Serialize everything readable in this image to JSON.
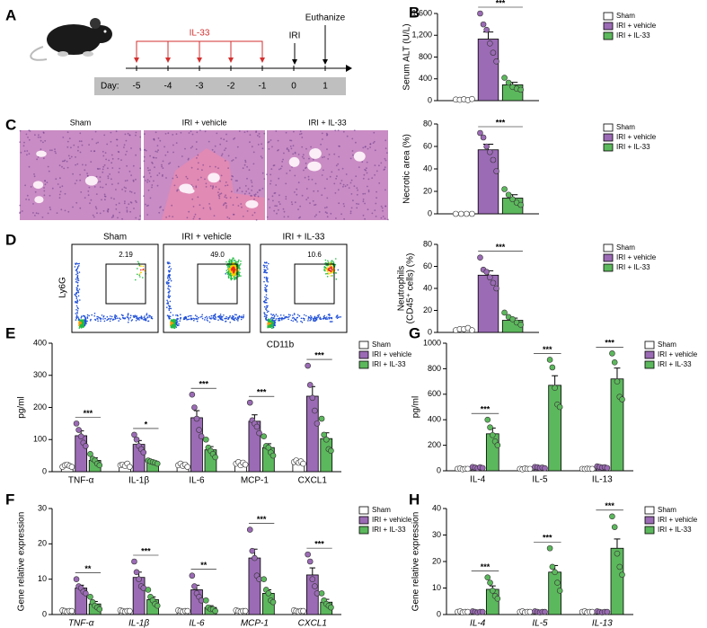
{
  "panel_labels": [
    "A",
    "B",
    "C",
    "D",
    "E",
    "F",
    "G",
    "H"
  ],
  "panel_a": {
    "treatment": "IL-33",
    "injury": "IRI",
    "endpoint": "Euthanize",
    "day_label": "Day:",
    "days": [
      "-5",
      "-4",
      "-3",
      "-2",
      "-1",
      "0",
      "1"
    ]
  },
  "panel_c": {
    "groups": [
      "Sham",
      "IRI + vehicle",
      "IRI + IL-33"
    ]
  },
  "panel_d": {
    "groups": [
      "Sham",
      "IRI + vehicle",
      "IRI + IL-33"
    ],
    "gate_percent": [
      "2.19",
      "49.0",
      "10.6"
    ],
    "y_axis": "Ly6G",
    "x_axis": "CD11b"
  },
  "chart_data": [
    {
      "type": "bar",
      "ylabel": "Serum ALT (U/L)",
      "categories": [
        null
      ],
      "significance": [
        "***"
      ],
      "ylim": [
        0,
        1600
      ],
      "yticks": [
        0,
        400,
        800,
        {
          "value": 1200,
          "label": "1,200"
        },
        {
          "value": 1600,
          "label": "1,600"
        }
      ],
      "series": [
        {
          "name": "Sham",
          "color": "#ffffff",
          "values": [
            20
          ],
          "errors": [
            5
          ],
          "points": [
            [
              20,
              15,
              25,
              10,
              30
            ]
          ]
        },
        {
          "name": "IRI + vehicle",
          "color": "#9b6bb5",
          "values": [
            1130
          ],
          "errors": [
            130
          ],
          "points": [
            [
              1600,
              1400,
              1300,
              1050,
              880,
              720
            ]
          ]
        },
        {
          "name": "IRI + IL-33",
          "color": "#5cb85c",
          "values": [
            290
          ],
          "errors": [
            45
          ],
          "points": [
            [
              420,
              330,
              250,
              220,
              200
            ]
          ]
        }
      ]
    },
    {
      "type": "bar",
      "ylabel": "Necrotic area (%)",
      "categories": [
        null
      ],
      "significance": [
        "***"
      ],
      "ylim": [
        0,
        80
      ],
      "yticks": [
        0,
        20,
        40,
        60,
        80
      ],
      "series": [
        {
          "name": "Sham",
          "color": "#ffffff",
          "values": [
            0
          ],
          "errors": [
            0
          ],
          "points": [
            [
              0,
              0,
              0,
              0
            ]
          ]
        },
        {
          "name": "IRI + vehicle",
          "color": "#9b6bb5",
          "values": [
            57
          ],
          "errors": [
            5
          ],
          "points": [
            [
              72,
              68,
              60,
              55,
              48,
              38
            ]
          ]
        },
        {
          "name": "IRI + IL-33",
          "color": "#5cb85c",
          "values": [
            14
          ],
          "errors": [
            3
          ],
          "points": [
            [
              22,
              17,
              13,
              10,
              8
            ]
          ]
        }
      ]
    },
    {
      "type": "bar",
      "ylabel": [
        "Neutrophils",
        "(CD45⁺ cells) (%)"
      ],
      "categories": [
        null
      ],
      "significance": [
        "***"
      ],
      "ylim": [
        0,
        80
      ],
      "yticks": [
        0,
        20,
        40,
        60,
        80
      ],
      "series": [
        {
          "name": "Sham",
          "color": "#ffffff",
          "values": [
            3
          ],
          "errors": [
            0.5
          ],
          "points": [
            [
              2,
              3,
              3,
              4,
              2
            ]
          ]
        },
        {
          "name": "IRI + vehicle",
          "color": "#9b6bb5",
          "values": [
            52
          ],
          "errors": [
            4
          ],
          "points": [
            [
              68,
              57,
              55,
              50,
              45,
              40
            ]
          ]
        },
        {
          "name": "IRI + IL-33",
          "color": "#5cb85c",
          "values": [
            11
          ],
          "errors": [
            2
          ],
          "points": [
            [
              18,
              14,
              12,
              9,
              7
            ]
          ]
        }
      ]
    },
    {
      "type": "bar",
      "ylabel": "pg/ml",
      "categories": [
        "TNF-α",
        "IL-1β",
        "IL-6",
        "MCP-1",
        "CXCL1"
      ],
      "significance": [
        "***",
        "*",
        "***",
        "***",
        "***"
      ],
      "ylim": [
        0,
        400
      ],
      "yticks": [
        0,
        100,
        200,
        300,
        400
      ],
      "series": [
        {
          "name": "Sham",
          "color": "#ffffff",
          "values": [
            18,
            20,
            20,
            25,
            30
          ],
          "errors": [
            3,
            3,
            3,
            3,
            3
          ],
          "points": [
            [
              15,
              20,
              22,
              18,
              15
            ],
            [
              20,
              22,
              18,
              25,
              15
            ],
            [
              20,
              25,
              18,
              22,
              15
            ],
            [
              25,
              30,
              20,
              28,
              22
            ],
            [
              30,
              35,
              28,
              32,
              25
            ]
          ]
        },
        {
          "name": "IRI + vehicle",
          "color": "#9b6bb5",
          "values": [
            112,
            85,
            168,
            157,
            235
          ],
          "errors": [
            15,
            12,
            22,
            20,
            30
          ],
          "points": [
            [
              150,
              130,
              110,
              90,
              80
            ],
            [
              115,
              100,
              80,
              70,
              60
            ],
            [
              240,
              200,
              165,
              130,
              110
            ],
            [
              215,
              160,
              150,
              140,
              120
            ],
            [
              330,
              270,
              230,
              190,
              150
            ]
          ]
        },
        {
          "name": "IRI + IL-33",
          "color": "#5cb85c",
          "values": [
            35,
            30,
            68,
            75,
            103
          ],
          "errors": [
            8,
            3,
            10,
            12,
            18
          ],
          "points": [
            [
              55,
              40,
              35,
              25,
              20
            ],
            [
              35,
              32,
              30,
              28,
              25
            ],
            [
              100,
              75,
              65,
              55,
              45
            ],
            [
              110,
              80,
              75,
              60,
              50
            ],
            [
              165,
              115,
              100,
              70,
              65
            ]
          ]
        }
      ]
    },
    {
      "type": "bar",
      "ylabel": "pg/ml",
      "categories": [
        "IL-4",
        "IL-5",
        "IL-13"
      ],
      "significance": [
        "***",
        "***",
        "***"
      ],
      "ylim": [
        0,
        1000
      ],
      "yticks": [
        0,
        200,
        400,
        600,
        800,
        1000
      ],
      "series": [
        {
          "name": "Sham",
          "color": "#ffffff",
          "values": [
            15,
            15,
            15
          ],
          "errors": [
            3,
            3,
            3
          ],
          "points": [
            [
              15,
              18,
              12,
              15,
              15
            ],
            [
              15,
              12,
              18,
              15,
              15
            ],
            [
              15,
              14,
              16,
              15,
              15
            ]
          ]
        },
        {
          "name": "IRI + vehicle",
          "color": "#9b6bb5",
          "values": [
            25,
            25,
            28
          ],
          "errors": [
            4,
            4,
            5
          ],
          "points": [
            [
              30,
              25,
              20,
              28,
              22
            ],
            [
              30,
              28,
              22,
              25,
              20
            ],
            [
              35,
              30,
              25,
              28,
              22
            ]
          ]
        },
        {
          "name": "IRI + IL-33",
          "color": "#5cb85c",
          "values": [
            290,
            670,
            720
          ],
          "errors": [
            45,
            75,
            85
          ],
          "points": [
            [
              400,
              340,
              280,
              230,
              200
            ],
            [
              870,
              810,
              650,
              520,
              500
            ],
            [
              920,
              850,
              700,
              580,
              560
            ]
          ]
        }
      ]
    },
    {
      "type": "bar",
      "ylabel": "Gene relative expression",
      "italic_categories": true,
      "categories": [
        "TNF-α",
        "IL-1β",
        "IL-6",
        "MCP-1",
        "CXCL1"
      ],
      "significance": [
        "**",
        "***",
        "**",
        "***",
        "***"
      ],
      "ylim": [
        0,
        30
      ],
      "yticks": [
        0,
        10,
        20,
        30
      ],
      "series": [
        {
          "name": "Sham",
          "color": "#ffffff",
          "values": [
            1,
            1,
            1,
            1,
            1
          ],
          "errors": [
            0.1,
            0.1,
            0.1,
            0.1,
            0.1
          ],
          "points": [
            [
              1.2,
              1,
              0.8,
              1,
              1
            ],
            [
              1.2,
              1,
              0.8,
              1,
              1
            ],
            [
              1.2,
              1,
              0.8,
              1,
              1
            ],
            [
              1.2,
              1,
              0.8,
              1,
              1
            ],
            [
              1.2,
              1,
              0.8,
              1,
              1
            ]
          ]
        },
        {
          "name": "IRI + vehicle",
          "color": "#9b6bb5",
          "values": [
            7.5,
            10.5,
            7,
            16,
            11.2
          ],
          "errors": [
            0.8,
            1.5,
            1.3,
            2.5,
            2
          ],
          "points": [
            [
              10,
              8,
              7.5,
              6.5,
              6
            ],
            [
              15,
              12,
              10,
              8,
              7.5
            ],
            [
              11,
              8,
              6,
              5,
              4
            ],
            [
              24,
              18,
              16,
              11,
              10
            ],
            [
              17,
              15,
              10,
              8,
              6
            ]
          ]
        },
        {
          "name": "IRI + IL-33",
          "color": "#5cb85c",
          "values": [
            3,
            4.2,
            2,
            6,
            3.5
          ],
          "errors": [
            0.7,
            0.8,
            0.5,
            1,
            0.8
          ],
          "points": [
            [
              5,
              3.5,
              2.5,
              2,
              1.5
            ],
            [
              7,
              5,
              4,
              3,
              2.5
            ],
            [
              4,
              2,
              1.5,
              1.5,
              1
            ],
            [
              10,
              7,
              6,
              4,
              3.5
            ],
            [
              6,
              4,
              3,
              2.5,
              2
            ]
          ]
        }
      ]
    },
    {
      "type": "bar",
      "ylabel": "Gene relative expression",
      "italic_categories": true,
      "categories": [
        "IL-4",
        "IL-5",
        "IL-13"
      ],
      "significance": [
        "***",
        "***",
        "***"
      ],
      "ylim": [
        0,
        40
      ],
      "yticks": [
        0,
        10,
        20,
        30,
        40
      ],
      "series": [
        {
          "name": "Sham",
          "color": "#ffffff",
          "values": [
            1,
            1,
            1
          ],
          "errors": [
            0.1,
            0.1,
            0.1
          ],
          "points": [
            [
              1,
              1.2,
              0.8,
              1,
              1
            ],
            [
              1,
              1.2,
              0.8,
              1,
              1
            ],
            [
              1,
              1.2,
              0.8,
              1,
              1
            ]
          ]
        },
        {
          "name": "IRI + vehicle",
          "color": "#9b6bb5",
          "values": [
            1,
            1,
            1
          ],
          "errors": [
            0.1,
            0.1,
            0.1
          ],
          "points": [
            [
              1.2,
              1,
              0.8,
              1,
              1
            ],
            [
              1.2,
              1,
              0.8,
              1,
              1
            ],
            [
              1.2,
              1,
              0.8,
              1,
              1
            ]
          ]
        },
        {
          "name": "IRI + IL-33",
          "color": "#5cb85c",
          "values": [
            9.5,
            16,
            25
          ],
          "errors": [
            1.3,
            2.5,
            3.5
          ],
          "points": [
            [
              14,
              12,
              9,
              7,
              6
            ],
            [
              25,
              18,
              16,
              12,
              9
            ],
            [
              37,
              33,
              23,
              18,
              15
            ]
          ]
        }
      ]
    }
  ]
}
